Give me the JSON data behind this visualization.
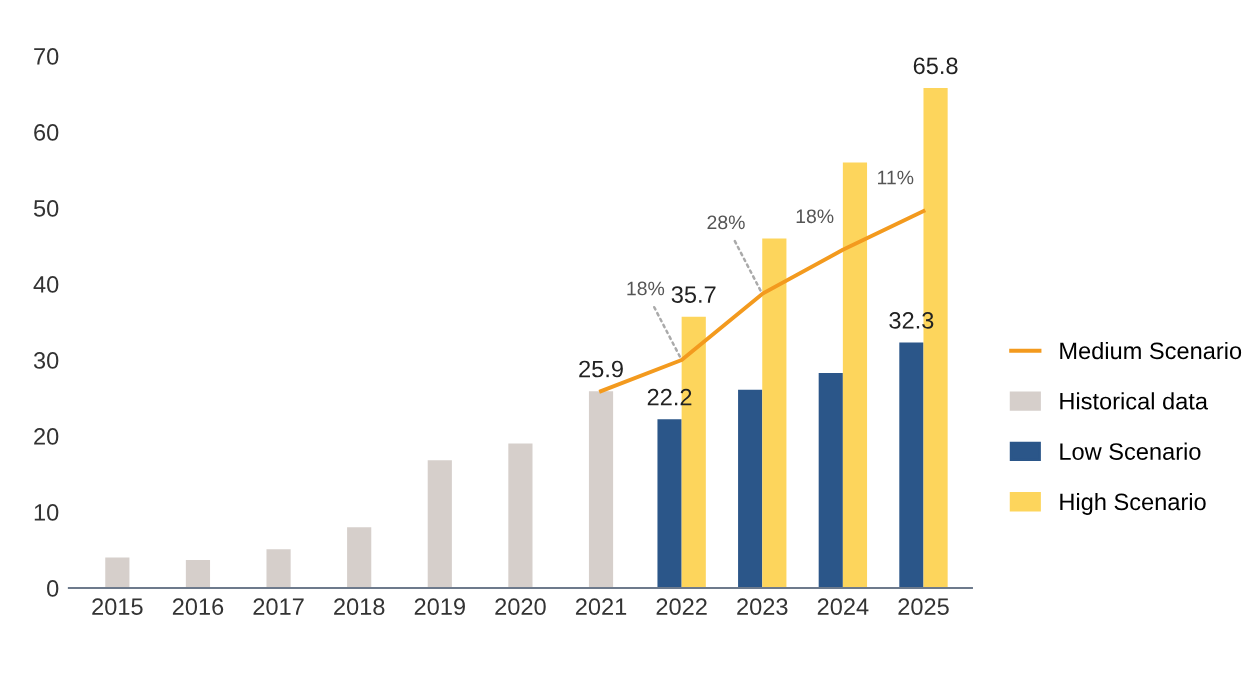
{
  "chart_data": {
    "type": "bar",
    "categories": [
      "2015",
      "2016",
      "2017",
      "2018",
      "2019",
      "2020",
      "2021",
      "2022",
      "2023",
      "2024",
      "2025"
    ],
    "series": [
      {
        "name": "Medium Scenario",
        "type": "line",
        "color": "#f39a1e",
        "values": [
          null,
          null,
          null,
          null,
          null,
          null,
          25.9,
          30.0,
          38.7,
          44.5,
          49.6
        ]
      },
      {
        "name": "Historical data",
        "color": "#d6cfcb",
        "values": [
          4.0,
          3.7,
          5.1,
          8.0,
          16.8,
          19.0,
          25.9,
          null,
          null,
          null,
          null
        ],
        "value_labels": [
          null,
          null,
          null,
          null,
          null,
          null,
          "25.9",
          null,
          null,
          null,
          null
        ]
      },
      {
        "name": "Low Scenario",
        "color": "#2b5689",
        "values": [
          null,
          null,
          null,
          null,
          null,
          null,
          null,
          22.2,
          26.1,
          28.3,
          32.3
        ],
        "value_labels": [
          null,
          null,
          null,
          null,
          null,
          null,
          null,
          "22.2",
          null,
          null,
          "32.3"
        ]
      },
      {
        "name": "High Scenario",
        "color": "#fdd55c",
        "values": [
          null,
          null,
          null,
          null,
          null,
          null,
          null,
          35.7,
          46.0,
          56.0,
          65.8
        ],
        "value_labels": [
          null,
          null,
          null,
          null,
          null,
          null,
          null,
          "35.7",
          null,
          null,
          "65.8"
        ]
      }
    ],
    "annotations": [
      {
        "text": "18%",
        "x": "2022",
        "y": 30.0
      },
      {
        "text": "28%",
        "x": "2023",
        "y": 38.7
      },
      {
        "text": "18%",
        "x": "2024",
        "y": 44.5
      },
      {
        "text": "11%",
        "x": "2025",
        "y": 49.6
      }
    ],
    "ylim": [
      0,
      70
    ],
    "yticks": [
      0,
      10,
      20,
      30,
      40,
      50,
      60,
      70
    ],
    "grid": false,
    "legend": "right"
  }
}
